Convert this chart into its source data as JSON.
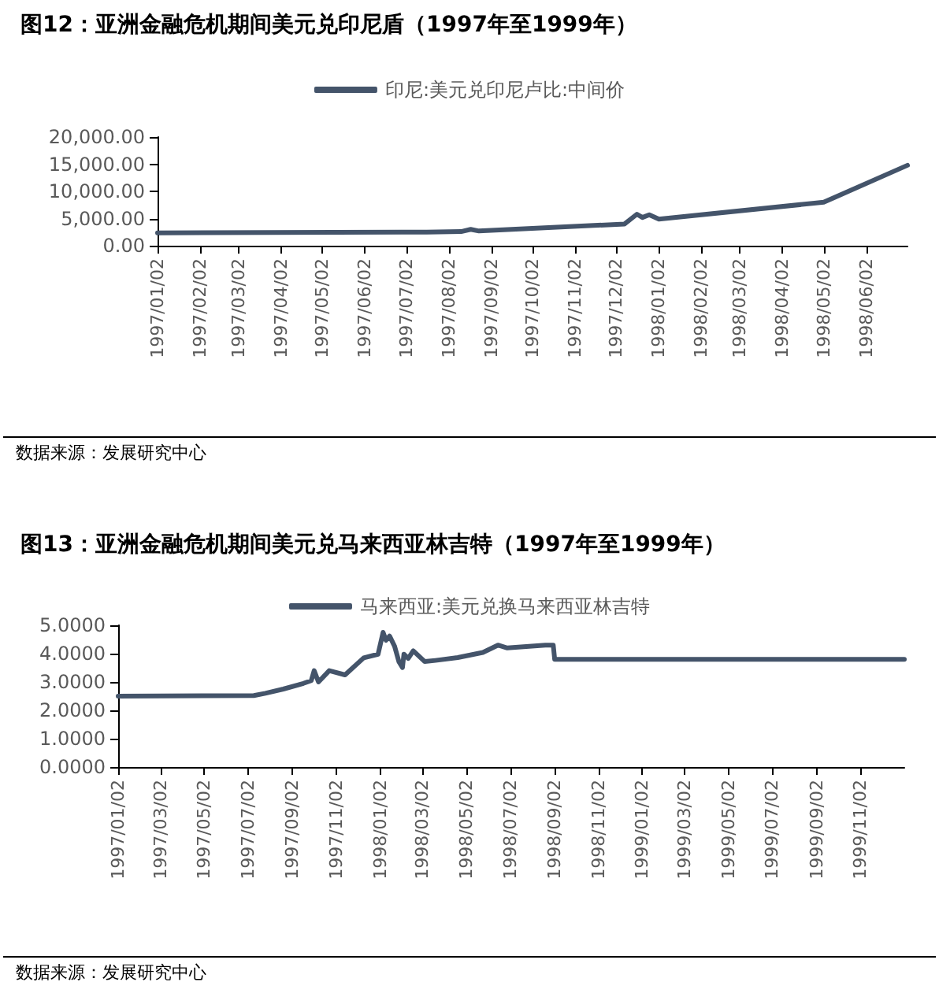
{
  "chart_data": [
    {
      "type": "line",
      "title": "图12：亚洲金融危机期间美元兑印尼盾（1997年至1999年）",
      "annotations": [
        "数据来源：发展研究中心"
      ],
      "legend": "top",
      "grid": false,
      "marker": "none",
      "line_style": "solid",
      "x": [
        "1997-01-02",
        "1997-07-17",
        "1997-08-11",
        "1997-08-18",
        "1997-08-24",
        "1997-12-08",
        "1997-12-17",
        "1997-12-21",
        "1997-12-26",
        "1998-01-02",
        "1998-05-02",
        "1998-07-02"
      ],
      "series": [
        {
          "name": "印尼:美元兑印尼卢比:中间价",
          "color": "#44546a",
          "values": [
            2360,
            2500,
            2600,
            3000,
            2700,
            4000,
            5800,
            5200,
            5700,
            4900,
            8000,
            14800
          ]
        }
      ],
      "xlim": [
        "1997-01-02",
        "1998-07-02"
      ],
      "xticks": [
        {
          "value": "1997-01-02",
          "label": "1997/01/02"
        },
        {
          "value": "1997-02-02",
          "label": "1997/02/02"
        },
        {
          "value": "1997-03-02",
          "label": "1997/03/02"
        },
        {
          "value": "1997-04-02",
          "label": "1997/04/02"
        },
        {
          "value": "1997-05-02",
          "label": "1997/05/02"
        },
        {
          "value": "1997-06-02",
          "label": "1997/06/02"
        },
        {
          "value": "1997-07-02",
          "label": "1997/07/02"
        },
        {
          "value": "1997-08-02",
          "label": "1997/08/02"
        },
        {
          "value": "1997-09-02",
          "label": "1997/09/02"
        },
        {
          "value": "1997-10-02",
          "label": "1997/10/02"
        },
        {
          "value": "1997-11-02",
          "label": "1997/11/02"
        },
        {
          "value": "1997-12-02",
          "label": "1997/12/02"
        },
        {
          "value": "1998-01-02",
          "label": "1998/01/02"
        },
        {
          "value": "1998-02-02",
          "label": "1998/02/02"
        },
        {
          "value": "1998-03-02",
          "label": "1998/03/02"
        },
        {
          "value": "1998-04-02",
          "label": "1998/04/02"
        },
        {
          "value": "1998-05-02",
          "label": "1998/05/02"
        },
        {
          "value": "1998-06-02",
          "label": "1998/06/02"
        }
      ],
      "ylim": [
        0,
        20000
      ],
      "yticks": [
        {
          "value": 0,
          "label": "0.00"
        },
        {
          "value": 5000,
          "label": "5,000.00"
        },
        {
          "value": 10000,
          "label": "10,000.00"
        },
        {
          "value": 15000,
          "label": "15,000.00"
        },
        {
          "value": 20000,
          "label": "20,000.00"
        }
      ]
    },
    {
      "type": "line",
      "title": "图13：亚洲金融危机期间美元兑马来西亚林吉特（1997年至1999年）",
      "annotations": [
        "数据来源：发展研究中心"
      ],
      "legend": "top",
      "grid": false,
      "marker": "none",
      "line_style": "solid",
      "x": [
        "1997-01-02",
        "1997-07-10",
        "1997-07-26",
        "1997-08-20",
        "1997-09-17",
        "1997-09-28",
        "1997-10-02",
        "1997-10-08",
        "1997-10-23",
        "1997-11-14",
        "1997-12-10",
        "1997-12-30",
        "1998-01-06",
        "1998-01-10",
        "1998-01-15",
        "1998-01-22",
        "1998-01-28",
        "1998-02-02",
        "1998-02-04",
        "1998-02-10",
        "1998-02-17",
        "1998-03-05",
        "1998-03-20",
        "1998-04-20",
        "1998-05-25",
        "1998-06-15",
        "1998-06-28",
        "1998-08-20",
        "1998-08-31",
        "1998-09-02",
        "2000-01-02"
      ],
      "series": [
        {
          "name": "马来西亚:美元兑换马来西亚林吉特",
          "color": "#44546a",
          "values": [
            2.5,
            2.52,
            2.6,
            2.75,
            2.95,
            3.05,
            3.4,
            3.0,
            3.4,
            3.25,
            3.85,
            3.98,
            4.75,
            4.47,
            4.62,
            4.26,
            3.72,
            3.51,
            3.98,
            3.83,
            4.1,
            3.72,
            3.76,
            3.86,
            4.04,
            4.3,
            4.2,
            4.3,
            4.3,
            3.8,
            3.8
          ]
        }
      ],
      "xlim": [
        "1997-01-02",
        "2000-01-02"
      ],
      "xticks": [
        {
          "value": "1997-01-02",
          "label": "1997/01/02"
        },
        {
          "value": "1997-03-02",
          "label": "1997/03/02"
        },
        {
          "value": "1997-05-02",
          "label": "1997/05/02"
        },
        {
          "value": "1997-07-02",
          "label": "1997/07/02"
        },
        {
          "value": "1997-09-02",
          "label": "1997/09/02"
        },
        {
          "value": "1997-11-02",
          "label": "1997/11/02"
        },
        {
          "value": "1998-01-02",
          "label": "1998/01/02"
        },
        {
          "value": "1998-03-02",
          "label": "1998/03/02"
        },
        {
          "value": "1998-05-02",
          "label": "1998/05/02"
        },
        {
          "value": "1998-07-02",
          "label": "1998/07/02"
        },
        {
          "value": "1998-09-02",
          "label": "1998/09/02"
        },
        {
          "value": "1998-11-02",
          "label": "1998/11/02"
        },
        {
          "value": "1999-01-02",
          "label": "1999/01/02"
        },
        {
          "value": "1999-03-02",
          "label": "1999/03/02"
        },
        {
          "value": "1999-05-02",
          "label": "1999/05/02"
        },
        {
          "value": "1999-07-02",
          "label": "1999/07/02"
        },
        {
          "value": "1999-09-02",
          "label": "1999/09/02"
        },
        {
          "value": "1999-11-02",
          "label": "1999/11/02"
        }
      ],
      "ylim": [
        0,
        5
      ],
      "yticks": [
        {
          "value": 0,
          "label": "0.0000"
        },
        {
          "value": 1,
          "label": "1.0000"
        },
        {
          "value": 2,
          "label": "2.0000"
        },
        {
          "value": 3,
          "label": "3.0000"
        },
        {
          "value": 4,
          "label": "4.0000"
        },
        {
          "value": 5,
          "label": "5.0000"
        }
      ]
    }
  ]
}
